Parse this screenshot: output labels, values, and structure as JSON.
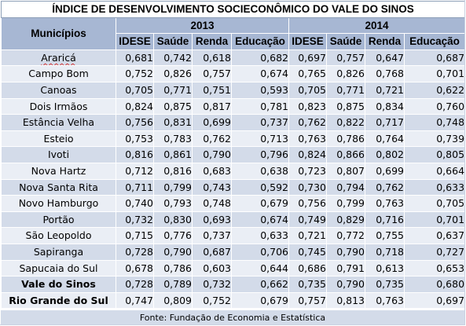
{
  "table": {
    "title": "ÍNDICE DE DESENVOLVIMENTO SOCIECONÔMICO DO VALE DO SINOS",
    "municipios_header": "Municípios",
    "years": [
      "2013",
      "2014"
    ],
    "subheaders": [
      "IDESE",
      "Saúde",
      "Renda",
      "Educação"
    ],
    "rows": [
      {
        "name": "Araricá",
        "v2013": [
          "0,681",
          "0,742",
          "0,618",
          "0,682"
        ],
        "v2014": [
          "0,697",
          "0,757",
          "0,647",
          "0,687"
        ]
      },
      {
        "name": "Campo Bom",
        "v2013": [
          "0,752",
          "0,826",
          "0,757",
          "0,674"
        ],
        "v2014": [
          "0,765",
          "0,826",
          "0,768",
          "0,701"
        ]
      },
      {
        "name": "Canoas",
        "v2013": [
          "0,705",
          "0,771",
          "0,751",
          "0,593"
        ],
        "v2014": [
          "0,705",
          "0,771",
          "0,721",
          "0,622"
        ]
      },
      {
        "name": "Dois Irmãos",
        "v2013": [
          "0,824",
          "0,875",
          "0,817",
          "0,781"
        ],
        "v2014": [
          "0,823",
          "0,875",
          "0,834",
          "0,760"
        ]
      },
      {
        "name": "Estância Velha",
        "v2013": [
          "0,756",
          "0,831",
          "0,699",
          "0,737"
        ],
        "v2014": [
          "0,762",
          "0,822",
          "0,717",
          "0,748"
        ]
      },
      {
        "name": "Esteio",
        "v2013": [
          "0,753",
          "0,783",
          "0,762",
          "0,713"
        ],
        "v2014": [
          "0,763",
          "0,786",
          "0,764",
          "0,739"
        ]
      },
      {
        "name": "Ivoti",
        "v2013": [
          "0,816",
          "0,861",
          "0,790",
          "0,796"
        ],
        "v2014": [
          "0,824",
          "0,866",
          "0,802",
          "0,805"
        ]
      },
      {
        "name": "Nova Hartz",
        "v2013": [
          "0,712",
          "0,816",
          "0,683",
          "0,638"
        ],
        "v2014": [
          "0,723",
          "0,807",
          "0,699",
          "0,664"
        ]
      },
      {
        "name": "Nova Santa Rita",
        "v2013": [
          "0,711",
          "0,799",
          "0,743",
          "0,592"
        ],
        "v2014": [
          "0,730",
          "0,794",
          "0,762",
          "0,633"
        ]
      },
      {
        "name": "Novo Hamburgo",
        "v2013": [
          "0,740",
          "0,793",
          "0,748",
          "0,679"
        ],
        "v2014": [
          "0,756",
          "0,799",
          "0,763",
          "0,705"
        ]
      },
      {
        "name": "Portão",
        "v2013": [
          "0,732",
          "0,830",
          "0,693",
          "0,674"
        ],
        "v2014": [
          "0,749",
          "0,829",
          "0,716",
          "0,701"
        ]
      },
      {
        "name": "São Leopoldo",
        "v2013": [
          "0,715",
          "0,776",
          "0,737",
          "0,633"
        ],
        "v2014": [
          "0,721",
          "0,772",
          "0,755",
          "0,637"
        ]
      },
      {
        "name": "Sapiranga",
        "v2013": [
          "0,728",
          "0,790",
          "0,687",
          "0,706"
        ],
        "v2014": [
          "0,745",
          "0,790",
          "0,718",
          "0,727"
        ]
      },
      {
        "name": "Sapucaia do Sul",
        "v2013": [
          "0,678",
          "0,786",
          "0,603",
          "0,644"
        ],
        "v2014": [
          "0,686",
          "0,791",
          "0,613",
          "0,653"
        ]
      },
      {
        "name": "Vale do Sinos",
        "bold": true,
        "v2013": [
          "0,728",
          "0,789",
          "0,732",
          "0,662"
        ],
        "v2014": [
          "0,735",
          "0,790",
          "0,735",
          "0,680"
        ]
      },
      {
        "name": "Rio Grande do Sul",
        "bold": true,
        "v2013": [
          "0,747",
          "0,809",
          "0,752",
          "0,679"
        ],
        "v2014": [
          "0,757",
          "0,813",
          "0,763",
          "0,697"
        ]
      }
    ],
    "source": "Fonte: Fundação de Economia e Estatística"
  },
  "colors": {
    "header_fill": "#a7b7d3",
    "row_fill_dark": "#d3dbe9",
    "row_fill_light": "#eaeef5",
    "spellcheck_underline": "#d23030"
  }
}
